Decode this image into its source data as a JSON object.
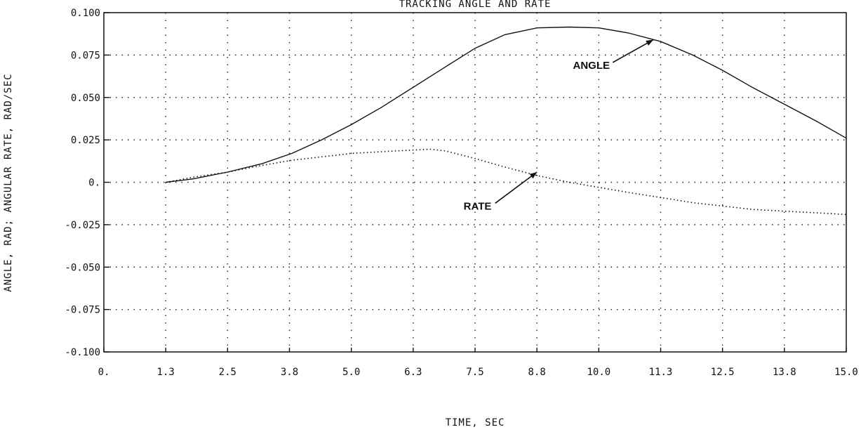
{
  "chart_data": {
    "type": "line",
    "title": "TRACKING ANGLE AND RATE",
    "xlabel": "TIME, SEC",
    "ylabel": "ANGLE, RAD; ANGULAR RATE, RAD/SEC",
    "xlim": [
      0,
      15
    ],
    "ylim": [
      -0.1,
      0.1
    ],
    "grid": true,
    "x_ticks": [
      0,
      1.25,
      2.5,
      3.75,
      5.0,
      6.25,
      7.5,
      8.75,
      10.0,
      11.25,
      12.5,
      13.75,
      15.0
    ],
    "x_tick_labels": [
      "0.",
      "1.3",
      "2.5",
      "3.8",
      "5.0",
      "6.3",
      "7.5",
      "8.8",
      "10.0",
      "11.3",
      "12.5",
      "13.8",
      "15.0"
    ],
    "y_ticks": [
      0.1,
      0.075,
      0.05,
      0.025,
      0,
      -0.025,
      -0.05,
      -0.075,
      -0.1
    ],
    "y_tick_labels": [
      "0.100",
      "0.075",
      "0.050",
      "0.025",
      "0.",
      "-0.025",
      "-0.050",
      "-0.075",
      "-0.100"
    ],
    "series": [
      {
        "name": "ANGLE",
        "style": "solid",
        "color": "#111111",
        "x": [
          1.25,
          1.8,
          2.5,
          3.2,
          3.8,
          4.4,
          5.0,
          5.6,
          6.25,
          6.9,
          7.5,
          8.1,
          8.75,
          9.4,
          10.0,
          10.6,
          11.25,
          11.9,
          12.5,
          13.1,
          13.75,
          14.4,
          15.0
        ],
        "y": [
          0.0,
          0.002,
          0.006,
          0.011,
          0.017,
          0.025,
          0.034,
          0.044,
          0.056,
          0.068,
          0.079,
          0.087,
          0.091,
          0.0915,
          0.091,
          0.088,
          0.083,
          0.075,
          0.066,
          0.056,
          0.046,
          0.036,
          0.026
        ]
      },
      {
        "name": "RATE",
        "style": "dotted",
        "color": "#111111",
        "x": [
          1.25,
          1.8,
          2.5,
          3.2,
          3.8,
          4.4,
          5.0,
          5.6,
          6.25,
          6.6,
          6.9,
          7.5,
          8.1,
          8.75,
          9.4,
          10.0,
          10.6,
          11.25,
          11.9,
          12.5,
          13.1,
          13.75,
          14.4,
          15.0
        ],
        "y": [
          0.0,
          0.003,
          0.006,
          0.01,
          0.013,
          0.015,
          0.017,
          0.018,
          0.019,
          0.0195,
          0.0185,
          0.014,
          0.009,
          0.004,
          0.0,
          -0.003,
          -0.006,
          -0.009,
          -0.012,
          -0.014,
          -0.016,
          -0.017,
          -0.018,
          -0.019
        ]
      }
    ],
    "annotations": [
      {
        "text": "ANGLE",
        "series": "ANGLE",
        "arrow_to": {
          "x": 11.1,
          "y": 0.084
        },
        "label_at": {
          "x": 9.85,
          "y": 0.069
        }
      },
      {
        "text": "RATE",
        "series": "RATE",
        "arrow_to": {
          "x": 8.75,
          "y": 0.006
        },
        "label_at": {
          "x": 7.55,
          "y": -0.014
        }
      }
    ]
  }
}
